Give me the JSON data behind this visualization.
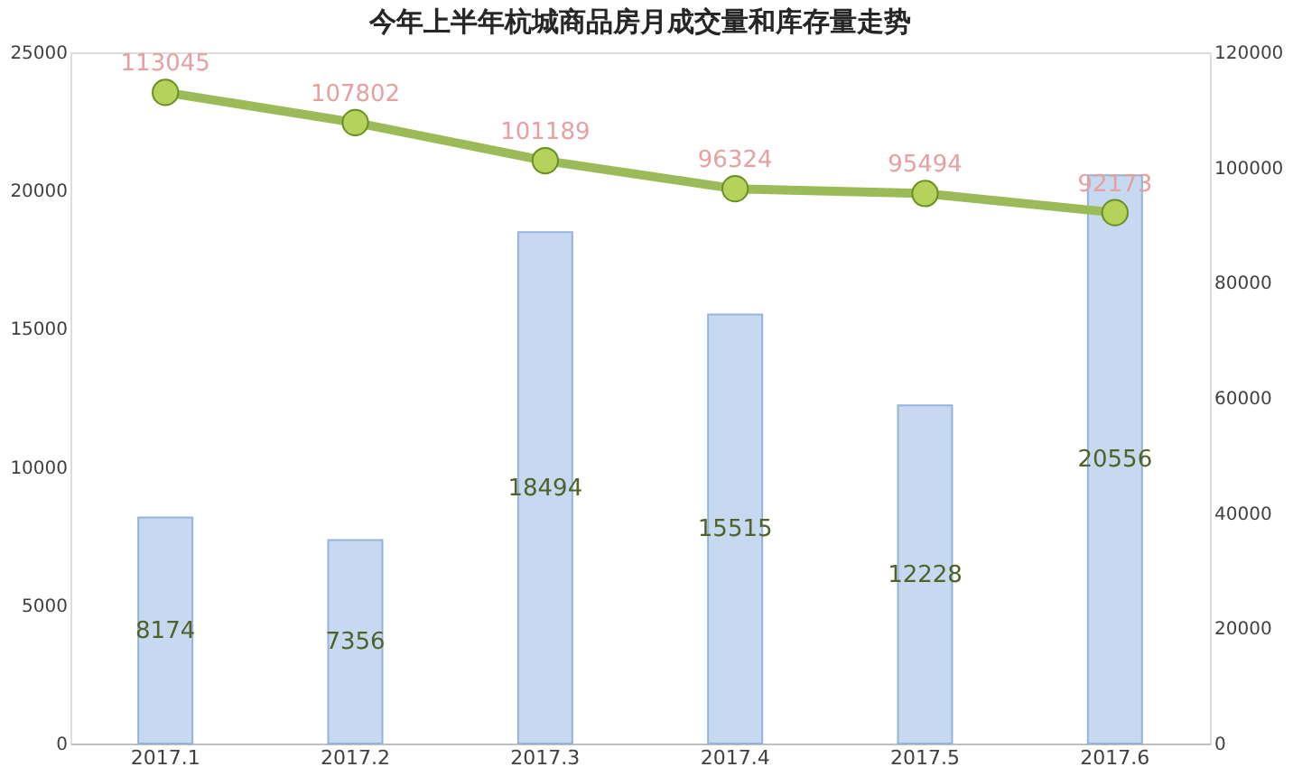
{
  "chart_data": {
    "type": "bar",
    "title": "今年上半年杭城商品房月成交量和库存量走势",
    "categories": [
      "2017.1",
      "2017.2",
      "2017.3",
      "2017.4",
      "2017.5",
      "2017.6"
    ],
    "series": [
      {
        "color": "#c6d9f1",
        "values": [
          8174,
          7356,
          18494,
          15515,
          12228,
          20556
        ]
      },
      {
        "type": "line",
        "axis": "y2",
        "color": "#9bbb59",
        "values": [
          113045,
          107802,
          101189,
          96324,
          95494,
          92173
        ]
      }
    ],
    "ylim": [
      0,
      25000
    ],
    "yticks": [
      0,
      5000,
      10000,
      15000,
      20000,
      25000
    ],
    "y2lim": [
      0,
      120000
    ],
    "y2ticks": [
      0,
      20000,
      40000,
      60000,
      80000,
      100000,
      120000
    ],
    "data_labels": true,
    "marker": "circle"
  }
}
